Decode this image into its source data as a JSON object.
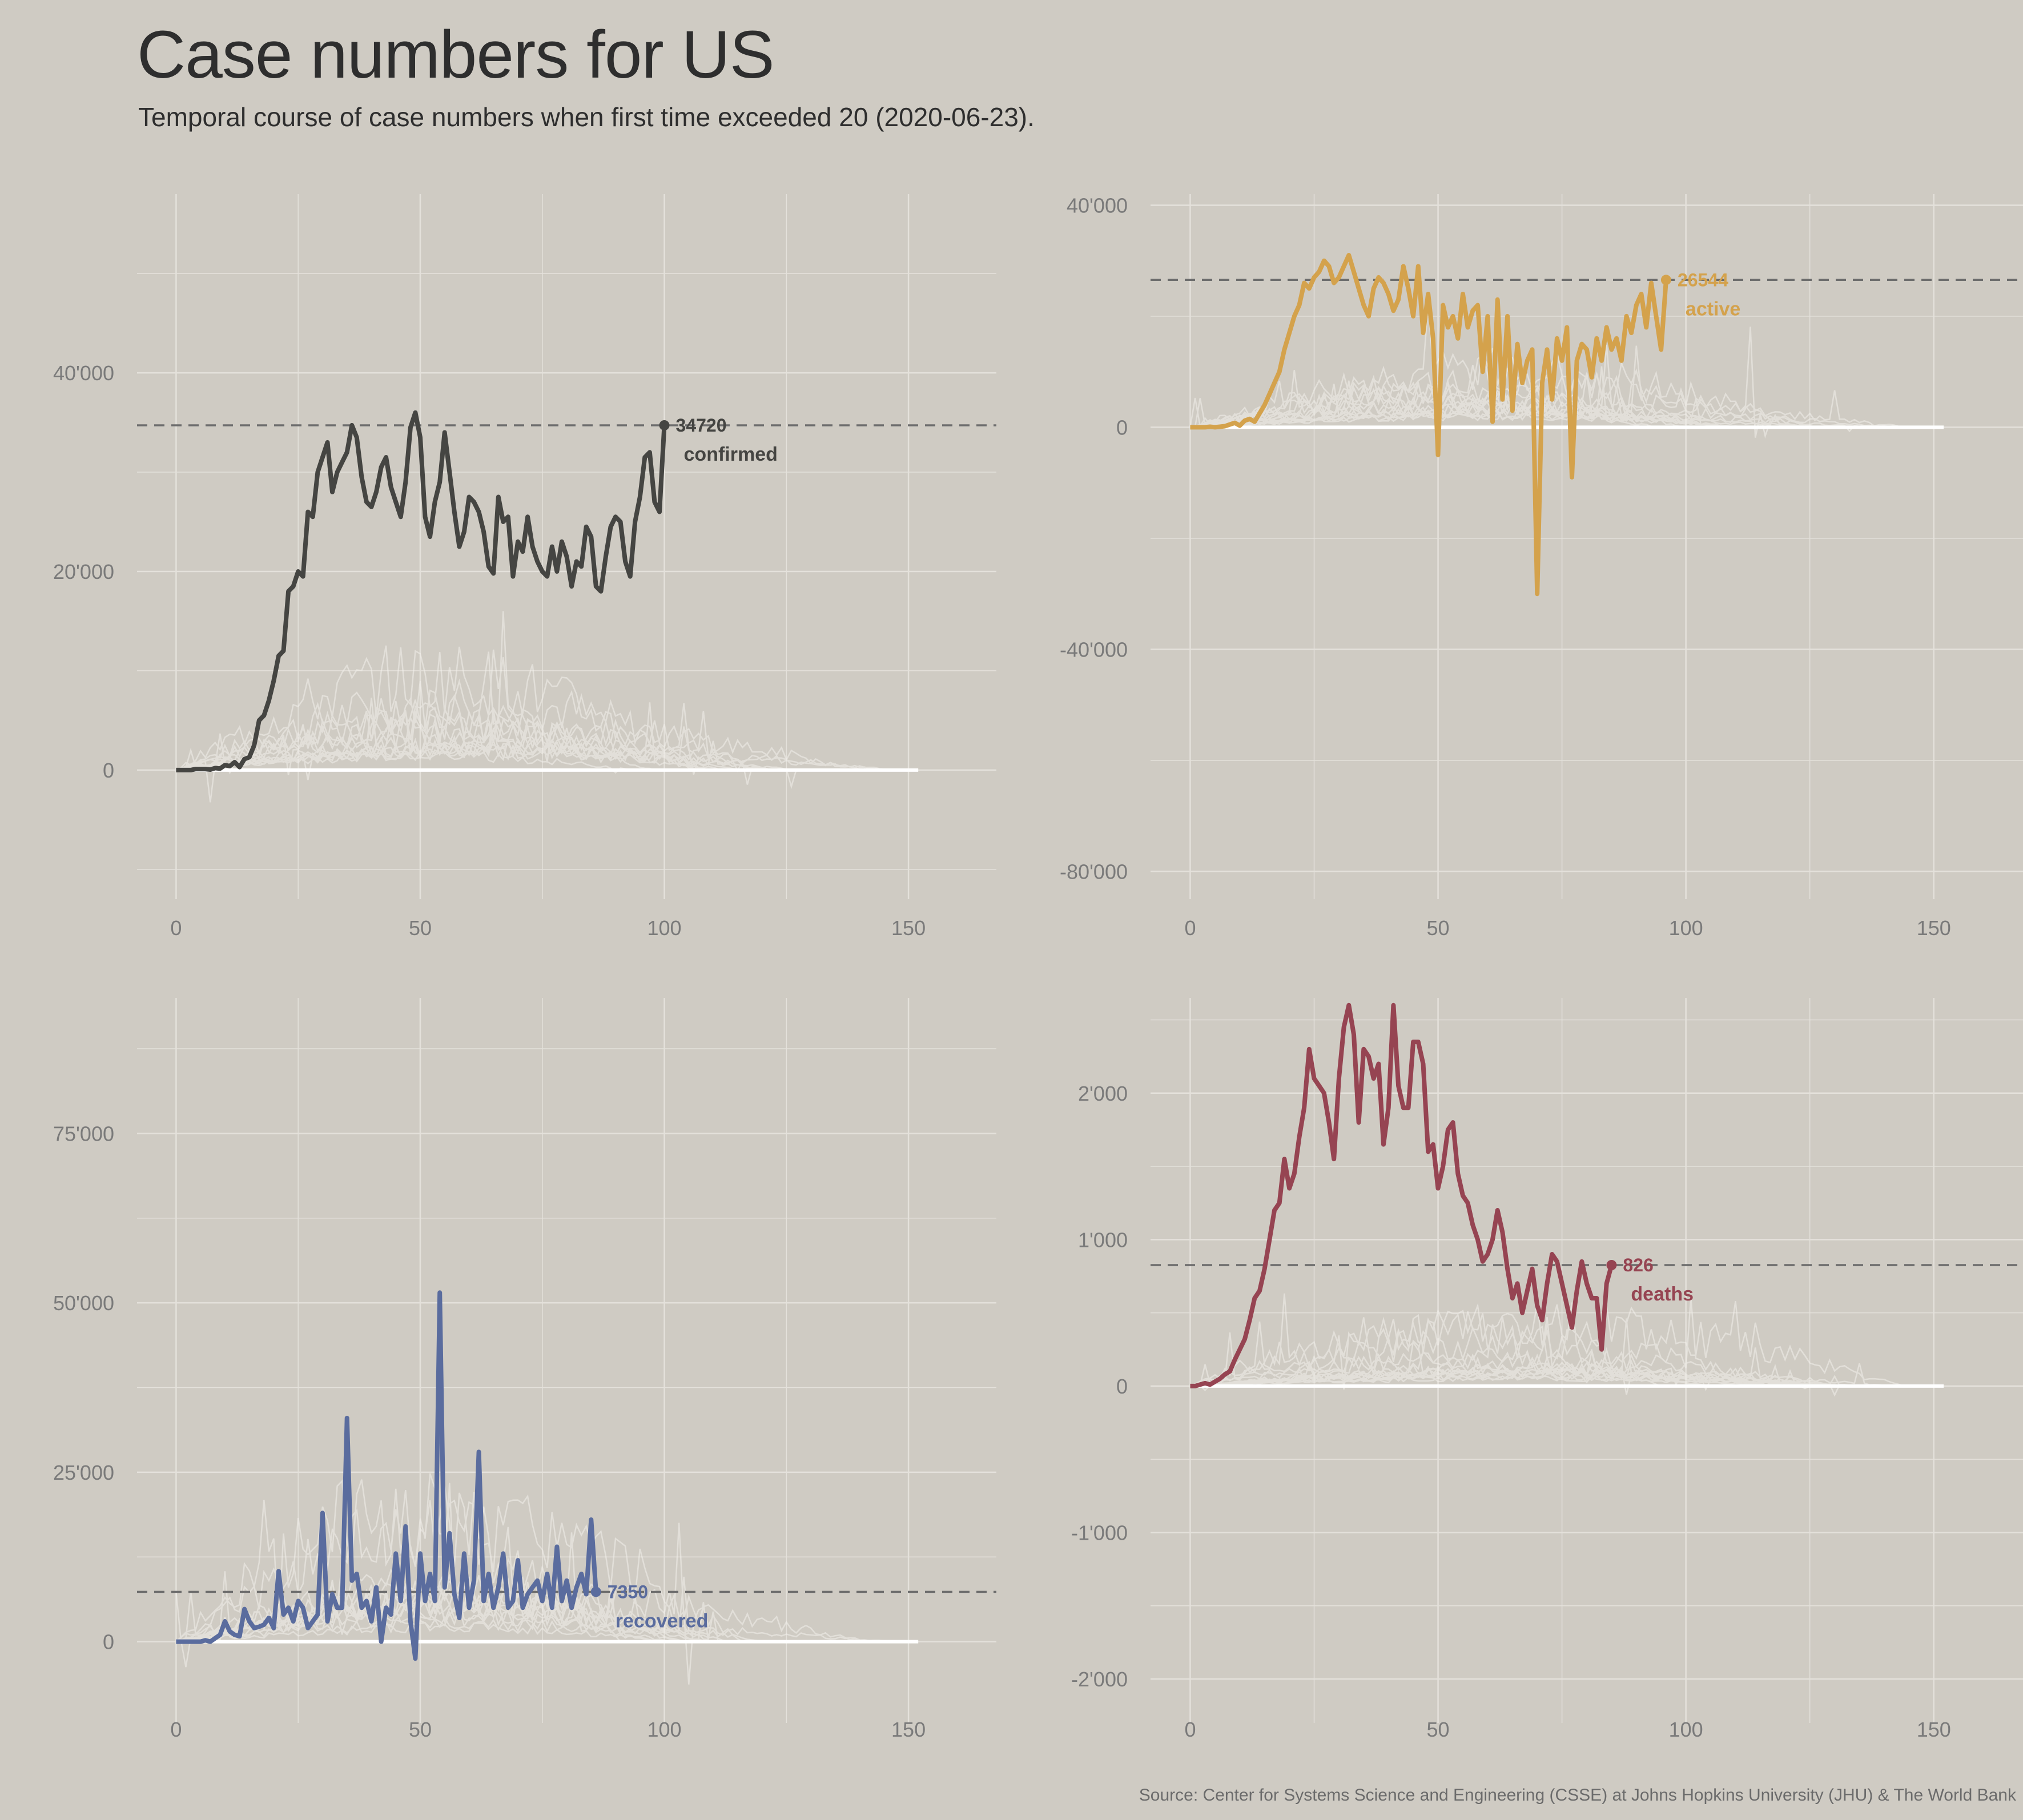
{
  "title": "Case numbers for US",
  "subtitle": "Temporal course of case numbers when first time exceeded 20 (2020-06-23).",
  "source": "Source: Center for Systems Science and Engineering (CSSE) at Johns Hopkins University (JHU) & The World Bank",
  "chart_data": [
    {
      "type": "line",
      "name": "confirmed",
      "color": "#454542",
      "xlim": [
        -8,
        168
      ],
      "ylim": [
        -13000,
        58000
      ],
      "xticks": [
        0,
        50,
        100,
        150
      ],
      "xtick_labels": [
        "0",
        "50",
        "100",
        "150"
      ],
      "yticks": [
        0,
        20000,
        40000
      ],
      "ytick_labels": [
        "0",
        "20'000",
        "40'000"
      ],
      "latest_value": 34720,
      "value_label": "34720",
      "label": "confirmed",
      "series": [
        {
          "name": "US",
          "values": [
            0,
            0,
            0,
            0,
            100,
            100,
            100,
            50,
            200,
            150,
            500,
            400,
            800,
            300,
            1100,
            1300,
            2500,
            5000,
            5500,
            7000,
            9000,
            11500,
            12000,
            18000,
            18500,
            20000,
            19500,
            26000,
            25500,
            30000,
            31500,
            33000,
            28000,
            30000,
            31000,
            32000,
            34720,
            33500,
            29500,
            27000,
            26500,
            28000,
            30500,
            31500,
            28500,
            27000,
            25500,
            29000,
            34500,
            36000,
            33500,
            25500,
            23500,
            27000,
            29000,
            34000,
            30000,
            26000,
            22500,
            24000,
            27500,
            27000,
            26000,
            24000,
            20500,
            19800,
            27500,
            25000,
            25500,
            19500,
            23000,
            22000,
            25500,
            22500,
            21000,
            20000,
            19500,
            22500,
            20000,
            23000,
            21500,
            18500,
            21000,
            20500,
            24500,
            23500,
            18500,
            18000,
            21500,
            24500,
            25500,
            25000,
            21000,
            19500,
            25000,
            27500,
            31500,
            32000,
            27000,
            26000,
            34720
          ]
        }
      ]
    },
    {
      "type": "line",
      "name": "active",
      "color": "#d4a24c",
      "xlim": [
        -8,
        168
      ],
      "ylim": [
        -85000,
        42000
      ],
      "xticks": [
        0,
        50,
        100,
        150
      ],
      "xtick_labels": [
        "0",
        "50",
        "100",
        "150"
      ],
      "yticks": [
        -80000,
        -40000,
        0,
        40000
      ],
      "ytick_labels": [
        "-80'000",
        "-40'000",
        "0",
        "40'000"
      ],
      "latest_value": 26544,
      "value_label": "26544",
      "label": "active",
      "series": [
        {
          "name": "US",
          "values": [
            0,
            0,
            0,
            0,
            100,
            0,
            100,
            200,
            500,
            800,
            300,
            1200,
            1500,
            1000,
            2500,
            4000,
            6000,
            8000,
            10000,
            14000,
            17000,
            20000,
            22000,
            26000,
            25000,
            27000,
            28000,
            30000,
            29000,
            26000,
            27000,
            29000,
            31000,
            28000,
            25000,
            22000,
            20000,
            25000,
            27000,
            26000,
            24000,
            21000,
            23000,
            29000,
            25000,
            20000,
            29000,
            17000,
            24000,
            16000,
            -5000,
            22000,
            18000,
            20000,
            16000,
            24000,
            18000,
            21000,
            22000,
            10000,
            20000,
            1000,
            23000,
            5000,
            20000,
            3000,
            15000,
            8000,
            12000,
            14000,
            -30000,
            8000,
            14000,
            5000,
            16000,
            12000,
            18000,
            -9000,
            12000,
            15000,
            14000,
            9000,
            16000,
            12000,
            18000,
            14000,
            16000,
            12000,
            20000,
            17000,
            22000,
            24000,
            18000,
            26000,
            20000,
            14000,
            26544
          ]
        }
      ]
    },
    {
      "type": "line",
      "name": "recovered",
      "color": "#5a6c9e",
      "xlim": [
        -8,
        168
      ],
      "ylim": [
        -12000,
        95000
      ],
      "xticks": [
        0,
        50,
        100,
        150
      ],
      "xtick_labels": [
        "0",
        "50",
        "100",
        "150"
      ],
      "yticks": [
        0,
        25000,
        50000,
        75000
      ],
      "ytick_labels": [
        "0",
        "25'000",
        "50'000",
        "75'000"
      ],
      "latest_value": 7350,
      "value_label": "7350",
      "label": "recovered",
      "series": [
        {
          "name": "US",
          "values": [
            0,
            0,
            0,
            0,
            0,
            0,
            200,
            0,
            500,
            1000,
            3000,
            1500,
            1000,
            800,
            4800,
            3000,
            2000,
            2200,
            2500,
            3500,
            2000,
            10400,
            4000,
            5000,
            3000,
            6000,
            5000,
            2000,
            3000,
            4000,
            19000,
            3000,
            7000,
            5000,
            5000,
            33000,
            9000,
            10000,
            5000,
            6000,
            3000,
            8000,
            0,
            5000,
            4000,
            13000,
            6000,
            17000,
            3000,
            -2500,
            13000,
            6000,
            10000,
            6000,
            51500,
            8000,
            16000,
            7000,
            3500,
            13000,
            5000,
            9000,
            28000,
            6000,
            10000,
            5000,
            8000,
            13000,
            5000,
            6000,
            12000,
            5000,
            7000,
            8000,
            9000,
            6000,
            10000,
            5000,
            14000,
            6000,
            9000,
            5000,
            8000,
            10000,
            7000,
            18000,
            7350
          ]
        }
      ]
    },
    {
      "type": "line",
      "name": "deaths",
      "color": "#964452",
      "xlim": [
        -8,
        168
      ],
      "ylim": [
        -2300,
        2650
      ],
      "xticks": [
        0,
        50,
        100,
        150
      ],
      "xtick_labels": [
        "0",
        "50",
        "100",
        "150"
      ],
      "yticks": [
        -2000,
        -1000,
        0,
        1000,
        2000
      ],
      "ytick_labels": [
        "-2'000",
        "-1'000",
        "0",
        "1'000",
        "2'000"
      ],
      "latest_value": 826,
      "value_label": "826",
      "label": "deaths",
      "series": [
        {
          "name": "US",
          "values": [
            0,
            0,
            10,
            20,
            10,
            30,
            50,
            80,
            100,
            180,
            250,
            320,
            450,
            600,
            650,
            800,
            1000,
            1200,
            1250,
            1550,
            1350,
            1450,
            1700,
            1900,
            2300,
            2100,
            2050,
            2000,
            1800,
            1550,
            2100,
            2450,
            2600,
            2400,
            1800,
            2300,
            2250,
            2100,
            2200,
            1650,
            1900,
            2600,
            2050,
            1900,
            1900,
            2350,
            2350,
            2200,
            1600,
            1650,
            1350,
            1500,
            1750,
            1800,
            1450,
            1300,
            1250,
            1100,
            1000,
            850,
            900,
            1000,
            1200,
            1050,
            800,
            600,
            700,
            500,
            650,
            800,
            550,
            450,
            700,
            900,
            850,
            700,
            550,
            400,
            650,
            850,
            700,
            600,
            600,
            250,
            700,
            826
          ]
        }
      ]
    }
  ]
}
